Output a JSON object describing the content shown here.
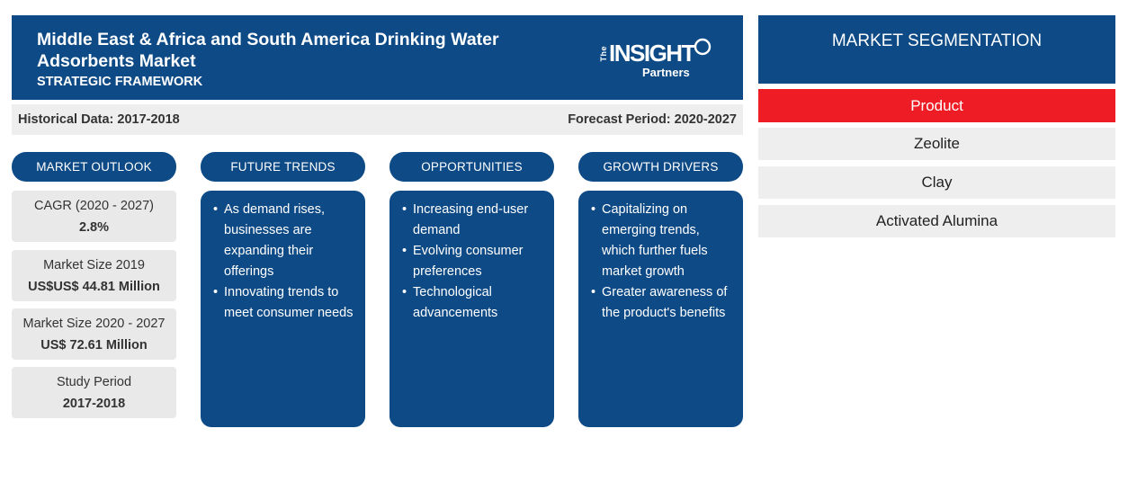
{
  "header": {
    "title": "Middle East & Africa and South America Drinking Water Adsorbents Market",
    "subtitle": "STRATEGIC FRAMEWORK",
    "logo": {
      "the": "The",
      "insight": "INSIGHT",
      "partners": "Partners"
    }
  },
  "infobar": {
    "historical": "Historical Data: 2017-2018",
    "forecast": "Forecast Period: 2020-2027"
  },
  "market_outlook": {
    "heading": "MARKET OUTLOOK",
    "stats": [
      {
        "label": "CAGR (2020 - 2027)",
        "value": "2.8%"
      },
      {
        "label": "Market Size 2019",
        "value": "US$US$ 44.81 Million"
      },
      {
        "label": "Market Size 2020 - 2027",
        "value": "US$ 72.61 Million"
      },
      {
        "label": "Study Period",
        "value": "2017-2018"
      }
    ]
  },
  "future_trends": {
    "heading": "FUTURE TRENDS",
    "items": [
      "As demand rises, businesses are expanding their offerings",
      "Innovating trends to meet consumer needs"
    ]
  },
  "opportunities": {
    "heading": "OPPORTUNITIES",
    "items": [
      "Increasing end-user demand",
      "Evolving consumer preferences",
      "Technological advancements"
    ]
  },
  "growth_drivers": {
    "heading": "GROWTH DRIVERS",
    "items": [
      "Capitalizing on emerging trends, which further fuels market growth",
      "Greater awareness of the product's benefits"
    ]
  },
  "segmentation": {
    "heading": "MARKET SEGMENTATION",
    "active": "Product",
    "items": [
      "Zeolite",
      "Clay",
      "Activated Alumina"
    ]
  },
  "colors": {
    "navy": "#0e4a86",
    "red": "#ee1c25",
    "panel": "#eeeeee"
  }
}
